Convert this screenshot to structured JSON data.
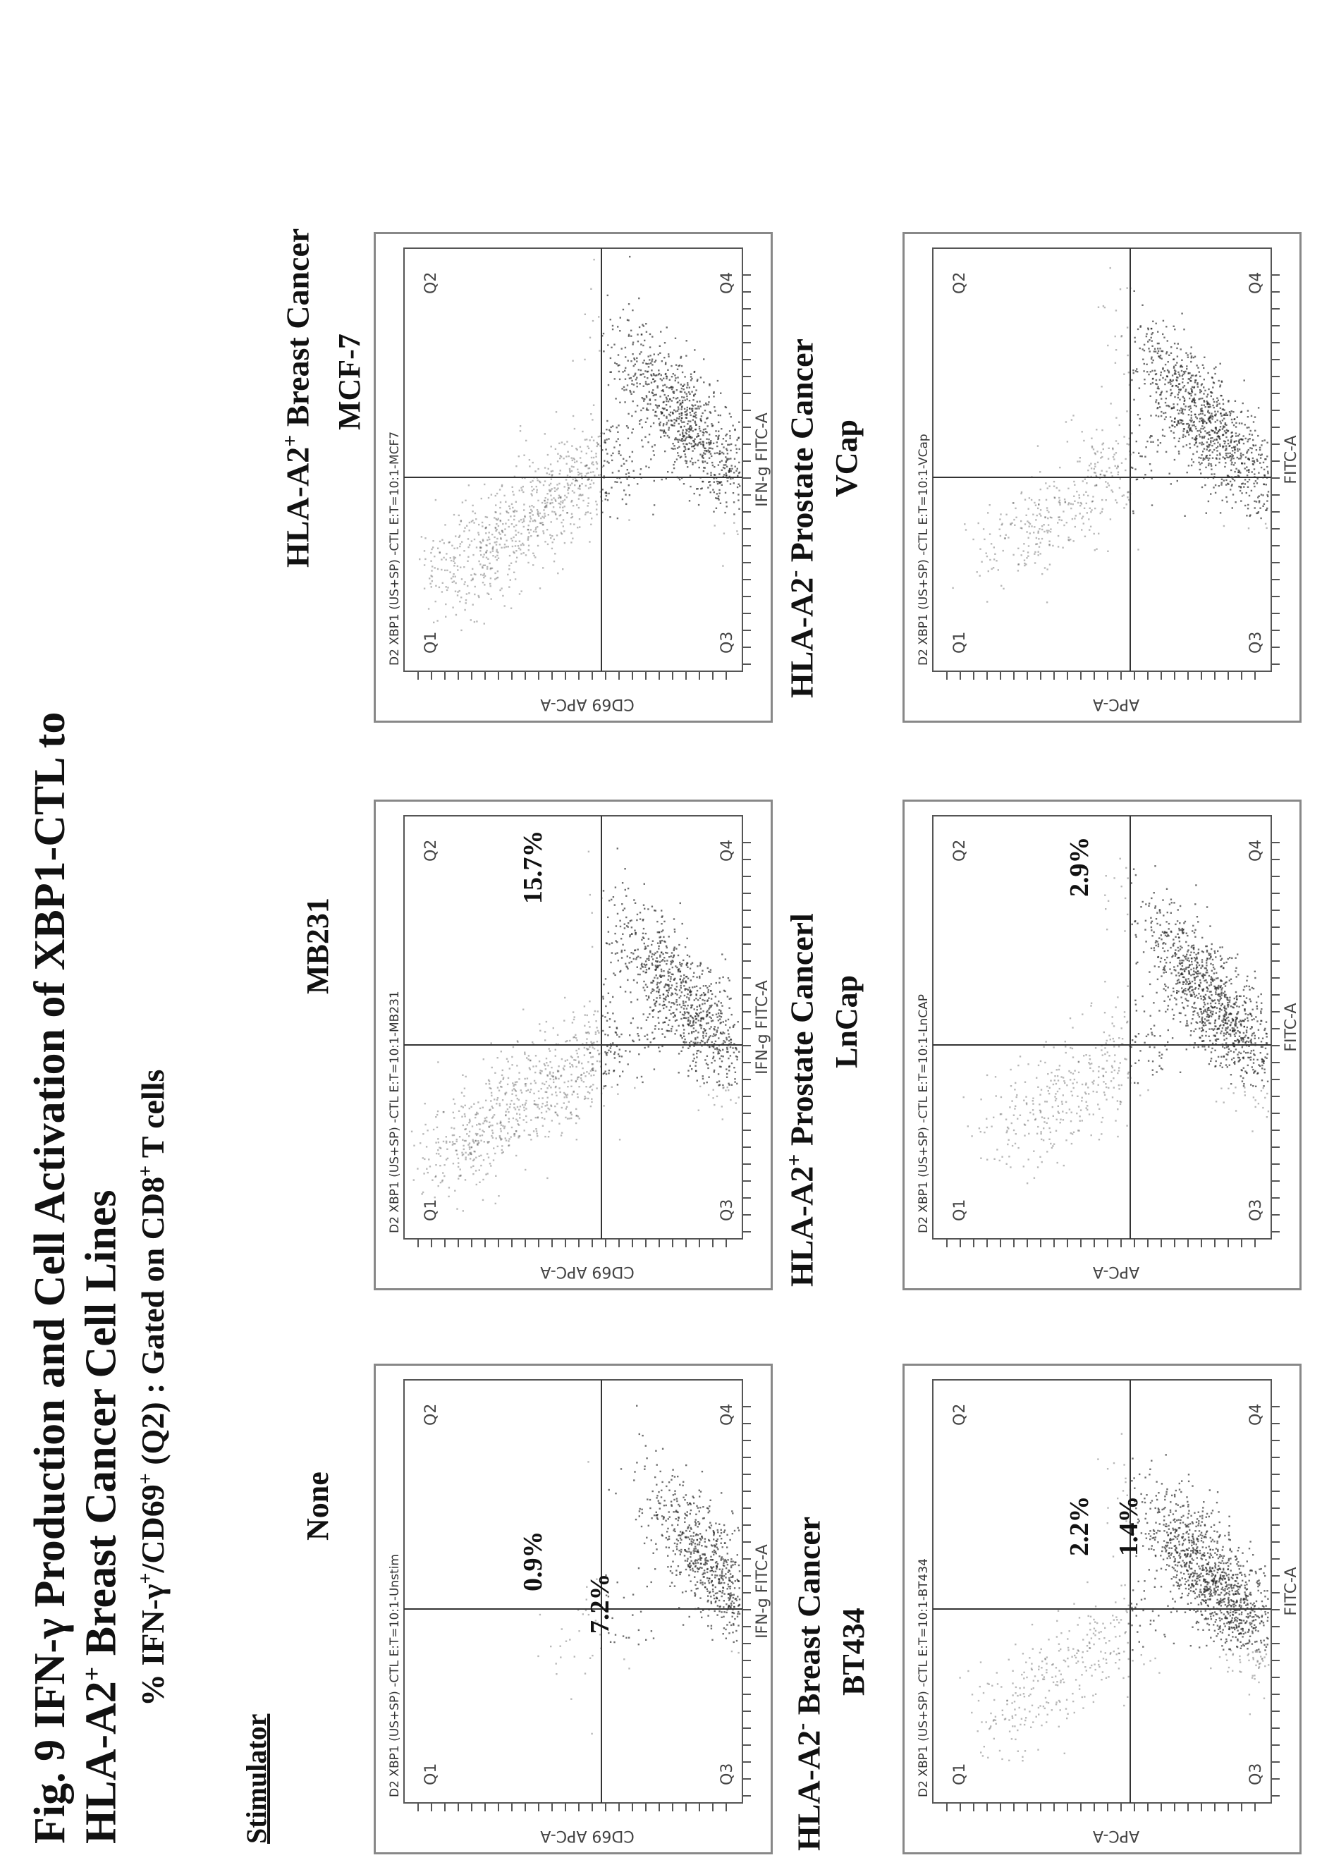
{
  "figure": {
    "title_line1": "Fig. 9 IFN-γ Production and Cell Activation of XBP1-CTL to",
    "title_line2_pre": "HLA-A2",
    "title_line2_sup": "+",
    "title_line2_post": " Breast Cancer Cell Lines",
    "subtitle_pre": "% IFN-γ",
    "subtitle_sup1": "+",
    "subtitle_mid": "/CD69",
    "subtitle_sup2": "+",
    "subtitle_mid2": " (Q2) : Gated on CD8",
    "subtitle_sup3": "+",
    "subtitle_post": " T cells",
    "stimulator_label": "Stimulator"
  },
  "column_headers": [
    "None",
    "MB231",
    "MCF-7"
  ],
  "group_labels": {
    "top_right_pre": "HLA-A2",
    "top_right_sup": "+",
    "top_right_post": " Breast Cancer",
    "bottom_left_pre": "HLA-A2",
    "bottom_left_sup": "-",
    "bottom_left_post": " Breast Cancer",
    "bottom_left_name": "BT434",
    "bottom_mid_pre": "HLA-A2",
    "bottom_mid_sup": "+",
    "bottom_mid_post": " Prostate Cancerl",
    "bottom_mid_name": "LnCap",
    "bottom_right_pre": "HLA-A2",
    "bottom_right_sup": "-",
    "bottom_right_post": " Prostate Cancer",
    "bottom_right_name": "VCap"
  },
  "chart_data": [
    {
      "type": "scatter",
      "title": "D2 XBP1 (US+SP) -CTL E:T=10:1-Unstim",
      "xlabel": "IFN-g FITC-A",
      "ylabel": "CD69 APC-A",
      "quadrants": [
        "Q1",
        "Q2",
        "Q3",
        "Q4"
      ],
      "annotations": [
        "0.9%",
        "7.2%"
      ]
    },
    {
      "type": "scatter",
      "title": "D2 XBP1 (US+SP) -CTL E:T=10:1-MB231",
      "xlabel": "IFN-g FITC-A",
      "ylabel": "CD69 APC-A",
      "quadrants": [
        "Q1",
        "Q2",
        "Q3",
        "Q4"
      ],
      "annotations": [
        "15.7%"
      ]
    },
    {
      "type": "scatter",
      "title": "D2 XBP1 (US+SP) -CTL E:T=10:1-MCF7",
      "xlabel": "IFN-g FITC-A",
      "ylabel": "CD69 APC-A",
      "quadrants": [
        "Q1",
        "Q2",
        "Q3",
        "Q4"
      ],
      "annotations": []
    },
    {
      "type": "scatter",
      "title": "D2 XBP1 (US+SP) -CTL E:T=10:1-BT434",
      "xlabel": "FITC-A",
      "ylabel": "APC-A",
      "quadrants": [
        "Q1",
        "Q2",
        "Q3",
        "Q4"
      ],
      "annotations": [
        "2.2%",
        "1.4%"
      ]
    },
    {
      "type": "scatter",
      "title": "D2 XBP1 (US+SP) -CTL E:T=10:1-LnCAP",
      "xlabel": "FITC-A",
      "ylabel": "APC-A",
      "quadrants": [
        "Q1",
        "Q2",
        "Q3",
        "Q4"
      ],
      "annotations": [
        "2.9%"
      ]
    },
    {
      "type": "scatter",
      "title": "D2 XBP1 (US+SP) -CTL E:T=10:1-VCap",
      "xlabel": "FITC-A",
      "ylabel": "APC-A",
      "quadrants": [
        "Q1",
        "Q2",
        "Q3",
        "Q4"
      ],
      "annotations": []
    }
  ]
}
